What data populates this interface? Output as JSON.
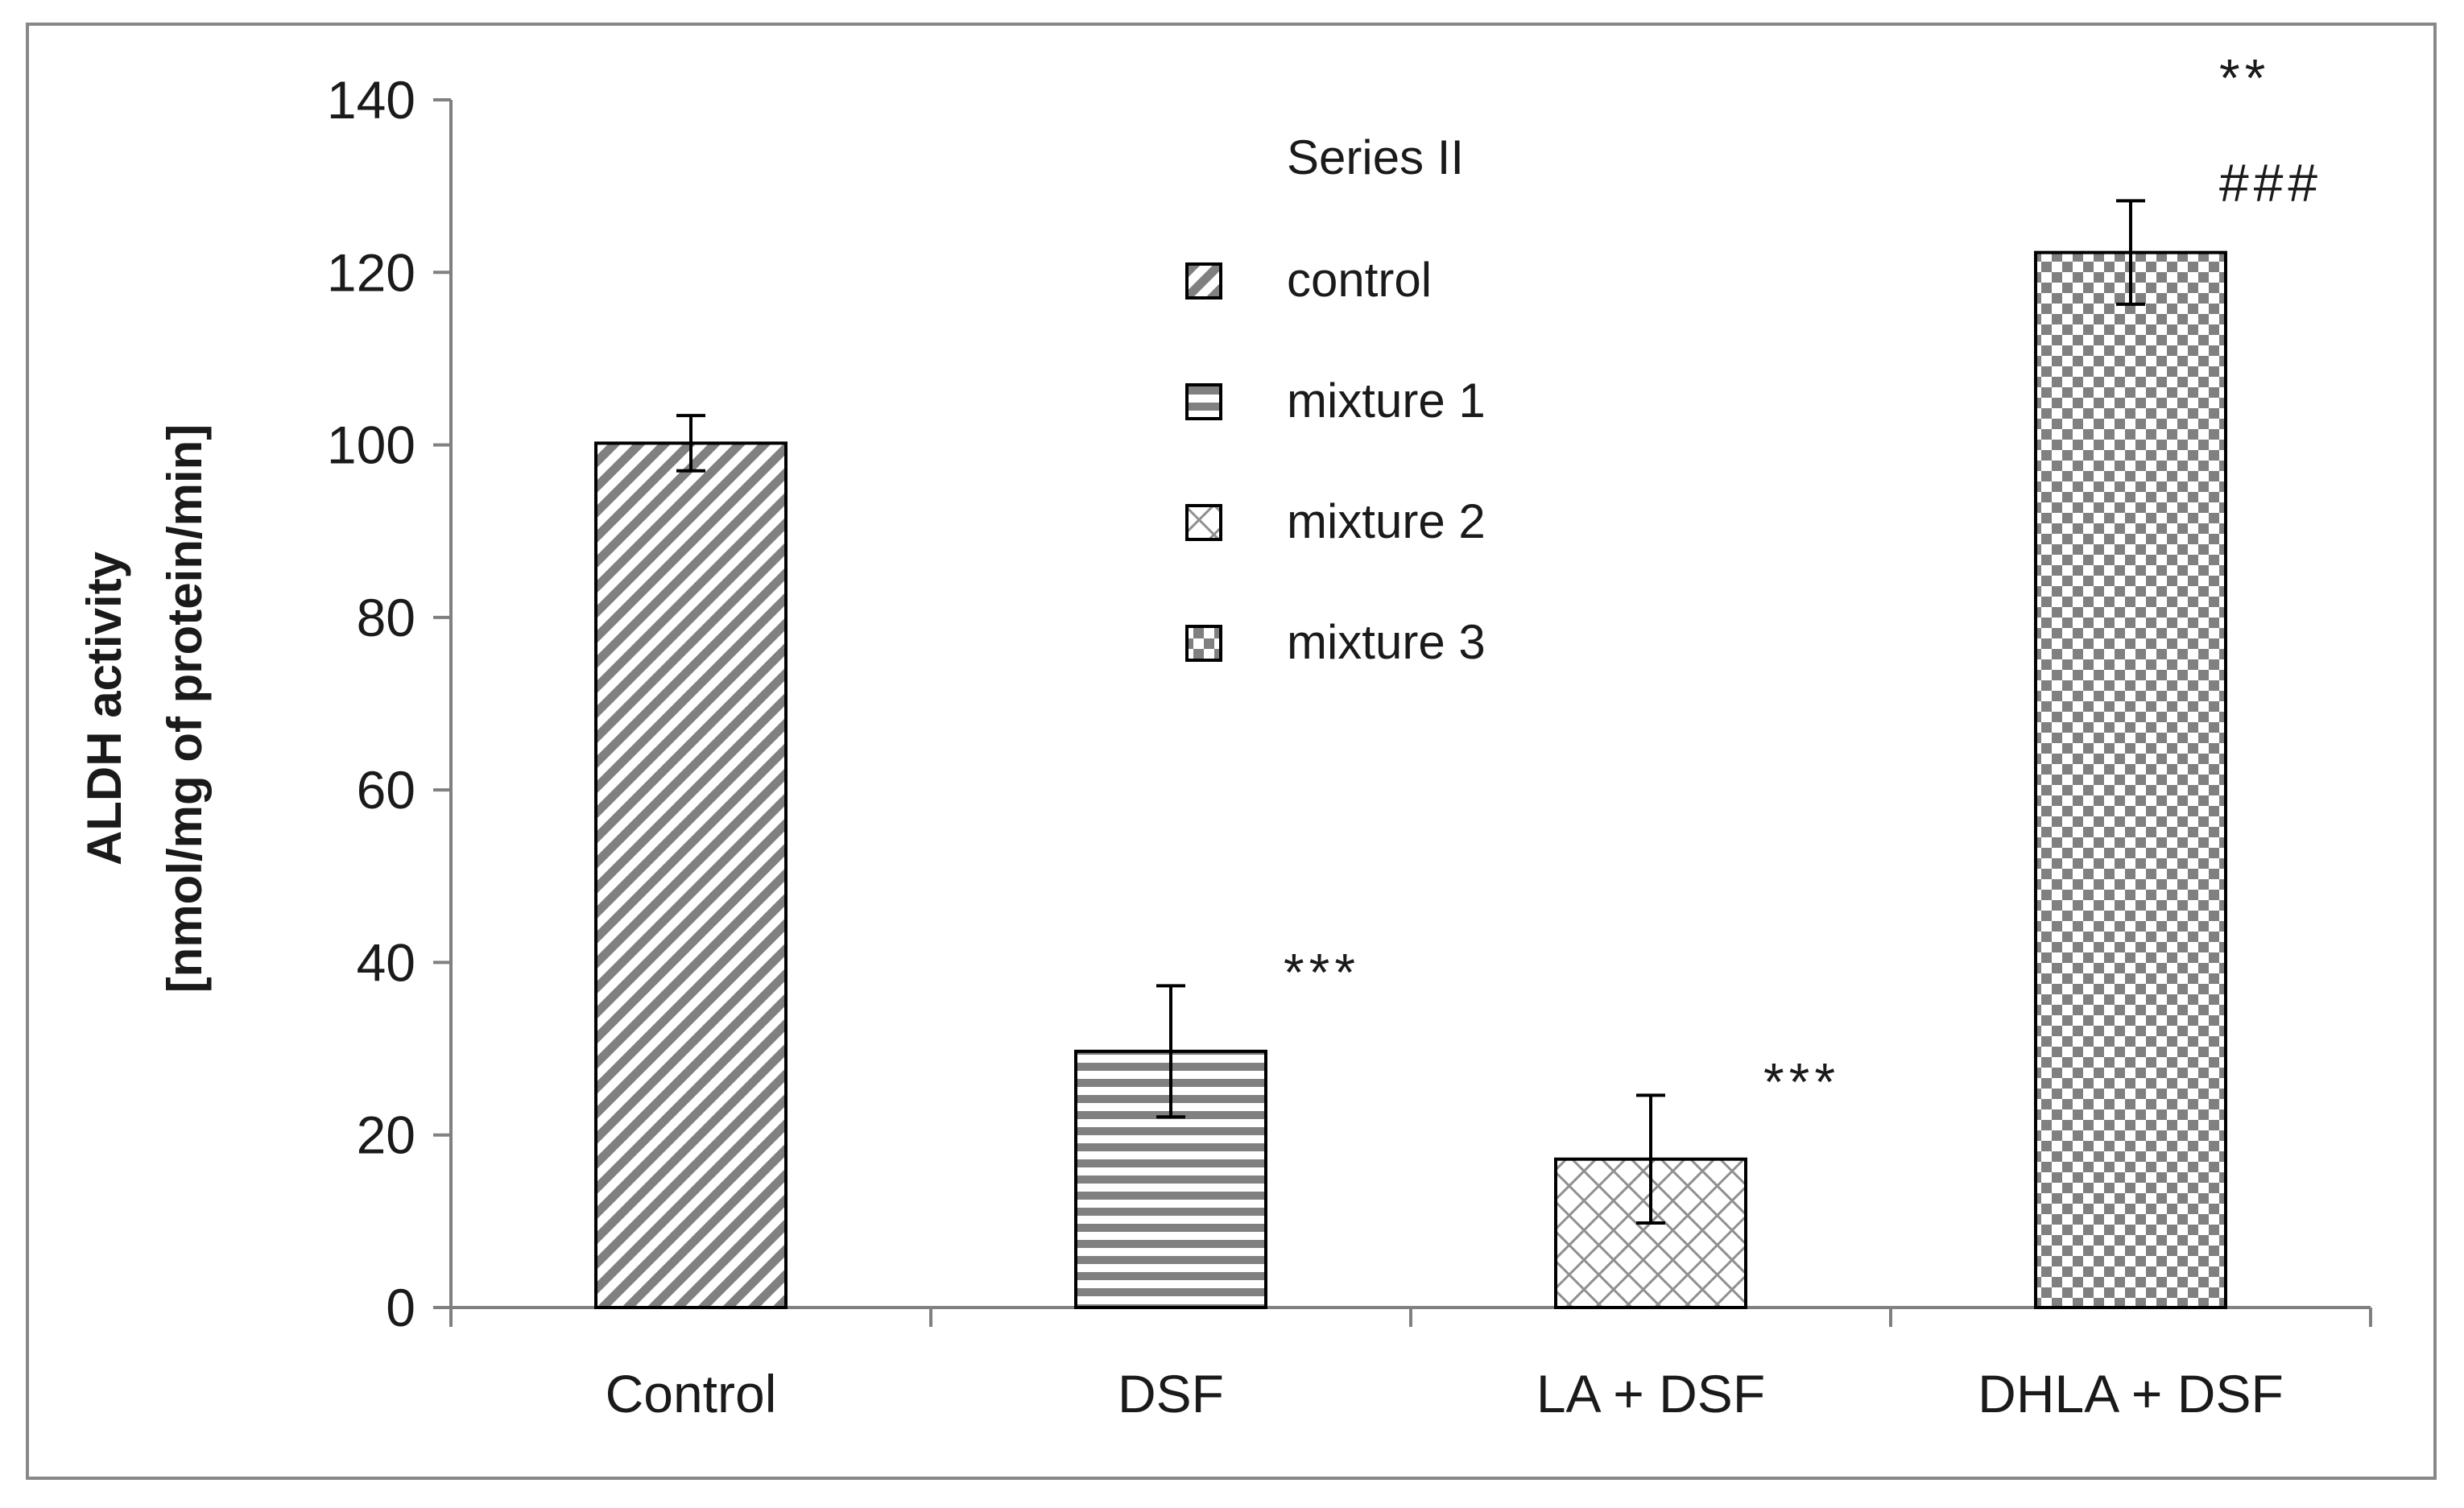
{
  "chart_data": {
    "type": "bar",
    "title": "",
    "xlabel": "",
    "ylabel": "ALDH activity",
    "ylabel_line2": "[nmol/mg of protein/min]",
    "ylim": [
      0,
      140
    ],
    "yticks": [
      0,
      20,
      40,
      60,
      80,
      100,
      120,
      140
    ],
    "grid": false,
    "categories": [
      "Control",
      "DSF",
      "LA + DSF",
      "DHLA + DSF"
    ],
    "values": [
      100.2,
      29.7,
      17.2,
      122.3
    ],
    "errors": [
      3.2,
      7.6,
      7.4,
      6.0
    ],
    "patterns": [
      "diagonal",
      "horizontal",
      "crosshatch",
      "checker"
    ],
    "annotations": [
      {
        "category": "DSF",
        "lines": [
          "***"
        ]
      },
      {
        "category": "LA + DSF",
        "lines": [
          "***"
        ]
      },
      {
        "category": "DHLA + DSF",
        "lines": [
          "**",
          "###"
        ]
      }
    ],
    "legend": {
      "title": "Series II",
      "position": "top-center",
      "entries": [
        {
          "label": "control",
          "pattern": "diagonal"
        },
        {
          "label": "mixture 1",
          "pattern": "horizontal"
        },
        {
          "label": "mixture 2",
          "pattern": "crosshatch"
        },
        {
          "label": "mixture 3",
          "pattern": "checker"
        }
      ]
    },
    "colors": {
      "pattern": "#808080",
      "outline": "#000000",
      "axis": "#808080",
      "frame": "#888888"
    }
  }
}
